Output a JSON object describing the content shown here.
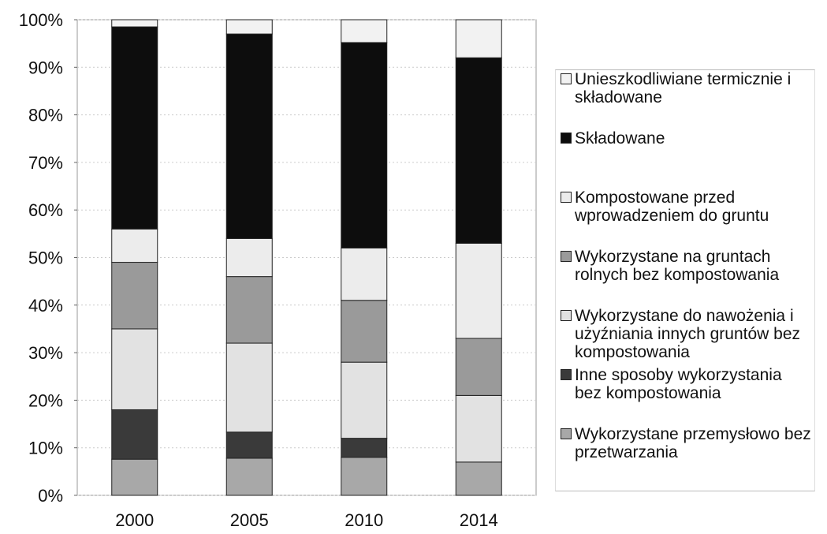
{
  "chart_data": {
    "type": "bar",
    "stacked": true,
    "categories": [
      "2000",
      "2005",
      "2010",
      "2014"
    ],
    "ylim": [
      0,
      100
    ],
    "yticks": [
      {
        "value": 0,
        "label": "0%"
      },
      {
        "value": 10,
        "label": "10%"
      },
      {
        "value": 20,
        "label": "20%"
      },
      {
        "value": 30,
        "label": "30%"
      },
      {
        "value": 40,
        "label": "40%"
      },
      {
        "value": 50,
        "label": "50%"
      },
      {
        "value": 60,
        "label": "60%"
      },
      {
        "value": 70,
        "label": "70%"
      },
      {
        "value": 80,
        "label": "80%"
      },
      {
        "value": 90,
        "label": "90%"
      },
      {
        "value": 100,
        "label": "100%"
      }
    ],
    "grid": true,
    "legend": "right",
    "series": [
      {
        "name": "Wykorzystane przemysłowo bez przetwarzania",
        "color": "#a8a8a8",
        "values": [
          7.6,
          7.8,
          8,
          7
        ]
      },
      {
        "name": "Inne sposoby wykorzystania bez kompostowania",
        "color": "#3a3a3a",
        "values": [
          10.4,
          5.5,
          4,
          0
        ]
      },
      {
        "name": "Wykorzystane do nawożenia i użyźniania innych gruntów bez kompostowania",
        "color": "#e2e2e2",
        "values": [
          17,
          18.7,
          16,
          14
        ]
      },
      {
        "name": "Wykorzystane na gruntach rolnych bez kompostowania",
        "color": "#9a9a9a",
        "values": [
          14,
          14,
          13,
          12
        ]
      },
      {
        "name": "Kompostowane przed wprowadzeniem do gruntu",
        "color": "#ececec",
        "values": [
          7,
          8,
          11,
          20
        ]
      },
      {
        "name": "Składowane",
        "color": "#0d0d0d",
        "values": [
          42.5,
          43,
          43.2,
          39
        ]
      },
      {
        "name": "Unieszkodliwiane termicznie i składowane",
        "color": "#f2f2f2",
        "values": [
          1.5,
          3,
          4.8,
          8
        ]
      }
    ]
  }
}
